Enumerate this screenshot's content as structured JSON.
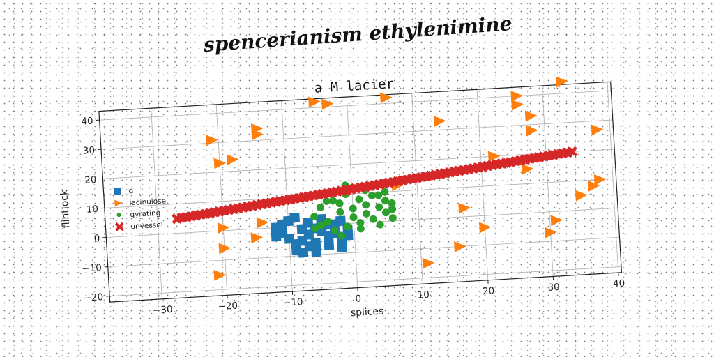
{
  "figure_title": "spencerianism ethylenimine",
  "chart_data": {
    "type": "scatter",
    "title": "a M lacier",
    "xlabel": "splices",
    "ylabel": "flintlock",
    "xlim": [
      -38,
      40.5
    ],
    "ylim": [
      -22,
      43
    ],
    "xticks": [
      -30,
      -20,
      -10,
      0,
      10,
      20,
      30,
      40
    ],
    "yticks": [
      -20,
      -10,
      0,
      10,
      20,
      30,
      40
    ],
    "grid": true,
    "legend_position": "center-left",
    "series": [
      {
        "name": "d",
        "marker": "square",
        "color": "#1f77b4",
        "points": [
          [
            -12,
            0
          ],
          [
            -11,
            -2
          ],
          [
            -10,
            2
          ],
          [
            -10,
            -4
          ],
          [
            -9,
            -8
          ],
          [
            -9,
            3
          ],
          [
            -8,
            -1
          ],
          [
            -8,
            -5
          ],
          [
            -7,
            -3
          ],
          [
            -7,
            1
          ],
          [
            -6,
            -6
          ],
          [
            -6,
            -9
          ],
          [
            -5,
            -2
          ],
          [
            -5,
            2
          ],
          [
            -4,
            -4
          ],
          [
            -4,
            -7
          ],
          [
            -3,
            0
          ],
          [
            -3,
            -3
          ],
          [
            -2,
            -5
          ],
          [
            -2,
            1
          ],
          [
            -1,
            -2
          ],
          [
            -1,
            -4
          ],
          [
            -12,
            -3
          ],
          [
            -8,
            -9
          ],
          [
            -6,
            -1
          ],
          [
            -4,
            0
          ],
          [
            -2,
            -8
          ],
          [
            -9,
            -6
          ],
          [
            -11,
            1
          ],
          [
            -7,
            -7
          ]
        ]
      },
      {
        "name": "lacinulose",
        "marker": "triangle-right",
        "color": "#ff7f0e",
        "points": [
          [
            -21,
            31
          ],
          [
            -20,
            23
          ],
          [
            -18,
            24
          ],
          [
            -14,
            34
          ],
          [
            -14,
            32
          ],
          [
            -20,
            1
          ],
          [
            -14,
            2
          ],
          [
            -15,
            -3
          ],
          [
            -20,
            -6
          ],
          [
            -21,
            -15
          ],
          [
            -5,
            42
          ],
          [
            -3,
            41
          ],
          [
            6,
            42
          ],
          [
            14,
            33
          ],
          [
            26,
            40
          ],
          [
            26,
            37
          ],
          [
            28,
            33
          ],
          [
            28,
            28
          ],
          [
            33,
            44
          ],
          [
            38,
            27
          ],
          [
            22,
            20
          ],
          [
            27,
            15
          ],
          [
            7,
            12
          ],
          [
            17,
            3
          ],
          [
            20,
            -4
          ],
          [
            11,
            -15
          ],
          [
            16,
            -10
          ],
          [
            30,
            -7
          ],
          [
            31,
            -3
          ],
          [
            35,
            5
          ],
          [
            38,
            10
          ],
          [
            37,
            8
          ]
        ]
      },
      {
        "name": "gyrating",
        "marker": "circle",
        "color": "#2ca02c",
        "points": [
          [
            -6,
            3
          ],
          [
            -5,
            6
          ],
          [
            -4,
            1
          ],
          [
            -3,
            8
          ],
          [
            -2,
            4
          ],
          [
            -2,
            7
          ],
          [
            -1,
            10
          ],
          [
            -1,
            -1
          ],
          [
            0,
            5
          ],
          [
            0,
            2
          ],
          [
            1,
            8
          ],
          [
            1,
            -2
          ],
          [
            2,
            6
          ],
          [
            2,
            3
          ],
          [
            3,
            9
          ],
          [
            3,
            1
          ],
          [
            4,
            5
          ],
          [
            4,
            -1
          ],
          [
            5,
            7
          ],
          [
            5,
            3
          ],
          [
            6,
            4
          ],
          [
            6,
            1
          ],
          [
            -4,
            8
          ],
          [
            -3,
            -2
          ],
          [
            -5,
            0
          ],
          [
            0,
            12
          ],
          [
            2,
            11
          ],
          [
            -1,
            13
          ],
          [
            3,
            12
          ],
          [
            1,
            0
          ],
          [
            4,
            9
          ],
          [
            -2,
            -4
          ],
          [
            -6,
            -1
          ],
          [
            5,
            10
          ],
          [
            6,
            6
          ]
        ]
      },
      {
        "name": "unvessel",
        "marker": "x",
        "color": "#d62728",
        "x_start": -27,
        "x_end": 34,
        "count": 85,
        "y_start": 5,
        "y_end": 20
      }
    ]
  }
}
